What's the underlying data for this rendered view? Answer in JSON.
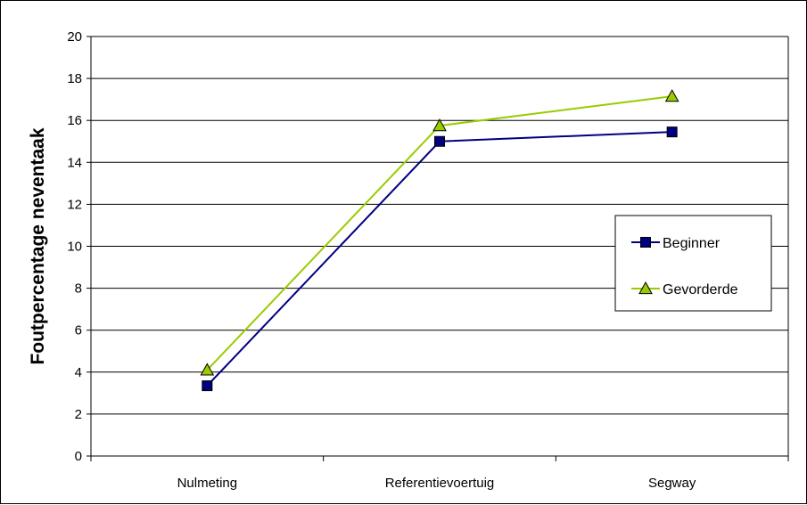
{
  "chart_data": {
    "type": "line",
    "categories": [
      "Nulmeting",
      "Referentievoertuig",
      "Segway"
    ],
    "series": [
      {
        "name": "Beginner",
        "values": [
          3.35,
          15.0,
          15.45
        ],
        "color": "#000080",
        "marker": "square"
      },
      {
        "name": "Gevorderde",
        "values": [
          4.1,
          15.75,
          17.15
        ],
        "color": "#99cc00",
        "marker": "triangle"
      }
    ],
    "title": "",
    "xlabel": "",
    "ylabel": "Foutpercentage neventaak",
    "ylim": [
      0,
      20
    ],
    "yticks": [
      0,
      2,
      4,
      6,
      8,
      10,
      12,
      14,
      16,
      18,
      20
    ],
    "grid": true,
    "legend_position": "right"
  }
}
